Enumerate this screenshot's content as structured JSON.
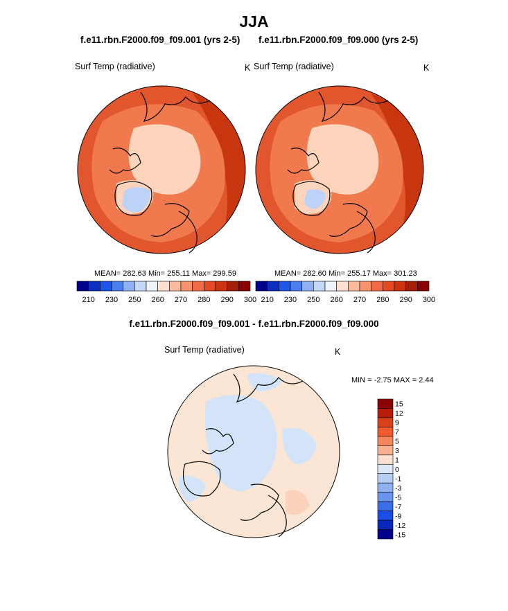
{
  "figure": {
    "season": "JJA",
    "panels": [
      {
        "case": "f.e11.rbn.F2000.f09_f09.001 (yrs 2-5)",
        "variable": "Surf Temp (radiative)",
        "units": "K",
        "stats": "MEAN= 282.63  Min= 255.11  Max= 299.59"
      },
      {
        "case": "f.e11.rbn.F2000.f09_f09.000 (yrs 2-5)",
        "variable": "Surf Temp (radiative)",
        "units": "K",
        "stats": "MEAN= 282.60  Min= 255.17  Max= 301.23"
      }
    ],
    "difference": {
      "title": "f.e11.rbn.F2000.f09_f09.001 - f.e11.rbn.F2000.f09_f09.000",
      "variable": "Surf Temp (radiative)",
      "units": "K",
      "stats": "MIN =  -2.75 MAX =   2.44"
    }
  },
  "colorbar_abs": {
    "colors": [
      "#00008b",
      "#0c2fc0",
      "#1e57e8",
      "#4a7ef0",
      "#8fb0f5",
      "#c5d7f8",
      "#eef2fb",
      "#fde0cf",
      "#fbbb9c",
      "#f7946e",
      "#f06b45",
      "#e34a22",
      "#cc3311",
      "#a31f07",
      "#8b0000"
    ],
    "labels": [
      "210",
      "230",
      "250",
      "260",
      "270",
      "280",
      "290",
      "300"
    ]
  },
  "colorbar_diff": {
    "colors": [
      "#8b0000",
      "#b71c0a",
      "#d9411a",
      "#f4592b",
      "#f7855c",
      "#fab08f",
      "#fde0cf",
      "#dde8f7",
      "#b6cdf3",
      "#8fb1ef",
      "#6995ec",
      "#3c6ee9",
      "#1a4fe6",
      "#0a28bc",
      "#00008b"
    ],
    "labels": [
      "15",
      "12",
      "9",
      "7",
      "5",
      "3",
      "1",
      "0",
      "-1",
      "-3",
      "-5",
      "-7",
      "-9",
      "-12",
      "-15"
    ]
  },
  "colors": {
    "base_warm": "#e2562e",
    "inner_warm": "#f07a4e",
    "ice": "#fcd3bb",
    "greenland_cold": "#bcd2f6",
    "hot_edge": "#c8360f",
    "diff_base": "#fbe6d6",
    "diff_blue": "#d4e4f8",
    "coast": "#000000"
  }
}
